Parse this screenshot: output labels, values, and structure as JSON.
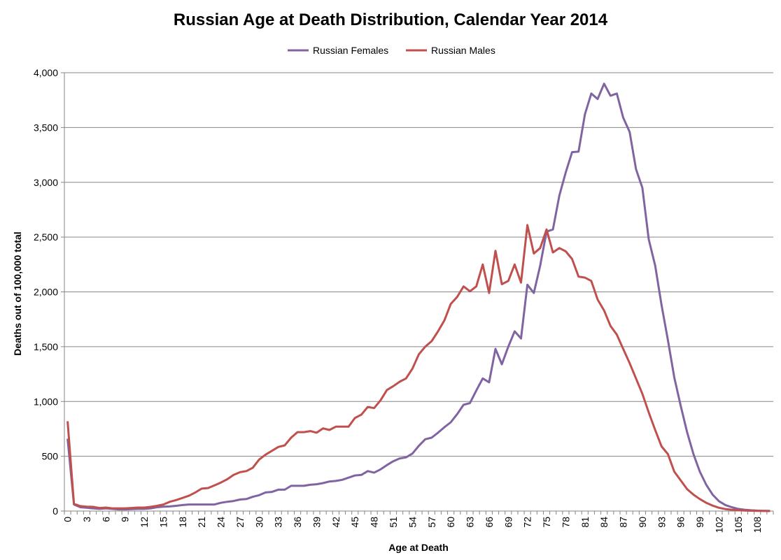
{
  "chart_data": {
    "type": "line",
    "title": "Russian Age at Death Distribution, Calendar Year 2014",
    "xlabel": "Age at Death",
    "ylabel": "Deaths out of 100,000 total",
    "ylim": [
      0,
      4000
    ],
    "yticks": [
      0,
      500,
      1000,
      1500,
      2000,
      2500,
      3000,
      3500,
      4000
    ],
    "ytick_labels": [
      "0",
      "500",
      "1,000",
      "1,500",
      "2,000",
      "2,500",
      "3,000",
      "3,500",
      "4,000"
    ],
    "xtick_labels": [
      "0",
      "3",
      "6",
      "9",
      "12",
      "15",
      "18",
      "21",
      "24",
      "27",
      "30",
      "33",
      "36",
      "39",
      "42",
      "45",
      "48",
      "51",
      "54",
      "57",
      "60",
      "63",
      "66",
      "69",
      "72",
      "75",
      "78",
      "81",
      "84",
      "87",
      "90",
      "93",
      "96",
      "99",
      "102",
      "105",
      "108"
    ],
    "x_start": 0,
    "x_end": 110,
    "grid": true,
    "legend_position": "top",
    "series": [
      {
        "name": "Russian Females",
        "color": "#8064a2",
        "values": [
          660,
          60,
          35,
          30,
          25,
          20,
          25,
          20,
          15,
          15,
          18,
          20,
          20,
          25,
          35,
          40,
          42,
          48,
          55,
          60,
          60,
          60,
          60,
          60,
          75,
          85,
          92,
          105,
          110,
          130,
          145,
          170,
          175,
          195,
          195,
          230,
          230,
          230,
          240,
          245,
          255,
          270,
          275,
          285,
          305,
          325,
          330,
          365,
          350,
          380,
          420,
          455,
          480,
          490,
          525,
          595,
          655,
          670,
          715,
          765,
          810,
          885,
          970,
          985,
          1100,
          1210,
          1175,
          1480,
          1340,
          1500,
          1640,
          1575,
          2065,
          1990,
          2240,
          2550,
          2570,
          2880,
          3090,
          3275,
          3280,
          3620,
          3810,
          3760,
          3900,
          3790,
          3810,
          3590,
          3460,
          3120,
          2950,
          2480,
          2240,
          1880,
          1560,
          1220,
          960,
          720,
          520,
          360,
          240,
          150,
          90,
          55,
          35,
          20,
          12,
          7,
          4,
          2,
          1
        ]
      },
      {
        "name": "Russian Males",
        "color": "#c0504d",
        "values": [
          820,
          65,
          45,
          40,
          38,
          28,
          32,
          25,
          25,
          25,
          28,
          32,
          32,
          38,
          48,
          60,
          85,
          100,
          120,
          140,
          170,
          205,
          210,
          235,
          260,
          290,
          330,
          355,
          365,
          395,
          470,
          515,
          550,
          585,
          600,
          670,
          720,
          720,
          730,
          715,
          755,
          740,
          770,
          770,
          770,
          850,
          880,
          950,
          940,
          1010,
          1105,
          1140,
          1180,
          1210,
          1300,
          1430,
          1500,
          1550,
          1640,
          1740,
          1890,
          1955,
          2050,
          2005,
          2050,
          2250,
          1990,
          2375,
          2070,
          2100,
          2250,
          2085,
          2610,
          2350,
          2400,
          2570,
          2360,
          2400,
          2370,
          2300,
          2140,
          2130,
          2100,
          1930,
          1830,
          1690,
          1610,
          1480,
          1350,
          1210,
          1070,
          900,
          740,
          590,
          520,
          360,
          280,
          200,
          150,
          110,
          75,
          50,
          30,
          18,
          12,
          8,
          5,
          3,
          2,
          1,
          0
        ]
      }
    ]
  }
}
